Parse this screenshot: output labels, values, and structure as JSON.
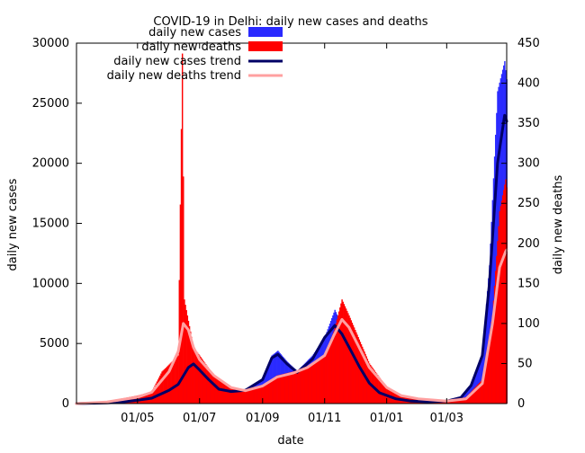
{
  "chart_data": {
    "type": "bar",
    "title": "COVID-19 in Delhi: daily new cases and deaths",
    "xlabel": "date",
    "ylabel": "daily new cases",
    "y2label": "daily new deaths",
    "x_ticks": [
      "01/05",
      "01/07",
      "01/09",
      "01/11",
      "01/01",
      "01/03"
    ],
    "x_tick_dates": [
      "2020-05-01",
      "2020-07-01",
      "2020-09-01",
      "2020-11-01",
      "2021-01-01",
      "2021-03-01"
    ],
    "x_range": [
      "2020-03-02",
      "2021-04-29"
    ],
    "ylim": [
      0,
      30000
    ],
    "y_ticks": [
      0,
      5000,
      10000,
      15000,
      20000,
      25000,
      30000
    ],
    "y2lim": [
      0,
      450
    ],
    "y2_ticks": [
      0,
      50,
      100,
      150,
      200,
      250,
      300,
      350,
      400,
      450
    ],
    "legend_placement": "top-left",
    "grid": false,
    "series": [
      {
        "name": "daily new cases",
        "kind": "bar",
        "axis": "left",
        "color": "#2a2aff",
        "points": [
          [
            "2020-03-02",
            0
          ],
          [
            "2020-04-01",
            80
          ],
          [
            "2020-04-15",
            150
          ],
          [
            "2020-05-01",
            300
          ],
          [
            "2020-05-15",
            500
          ],
          [
            "2020-06-01",
            1200
          ],
          [
            "2020-06-10",
            1800
          ],
          [
            "2020-06-20",
            3200
          ],
          [
            "2020-06-25",
            3500
          ],
          [
            "2020-07-01",
            2800
          ],
          [
            "2020-07-10",
            2000
          ],
          [
            "2020-07-20",
            1200
          ],
          [
            "2020-08-01",
            1000
          ],
          [
            "2020-08-15",
            1100
          ],
          [
            "2020-09-01",
            2000
          ],
          [
            "2020-09-10",
            4000
          ],
          [
            "2020-09-16",
            4400
          ],
          [
            "2020-09-25",
            3500
          ],
          [
            "2020-10-05",
            2700
          ],
          [
            "2020-10-20",
            4000
          ],
          [
            "2020-11-01",
            5500
          ],
          [
            "2020-11-11",
            7800
          ],
          [
            "2020-11-18",
            6500
          ],
          [
            "2020-11-25",
            5500
          ],
          [
            "2020-12-05",
            3200
          ],
          [
            "2020-12-15",
            1800
          ],
          [
            "2020-12-25",
            900
          ],
          [
            "2021-01-10",
            400
          ],
          [
            "2021-01-25",
            200
          ],
          [
            "2021-02-10",
            150
          ],
          [
            "2021-03-01",
            200
          ],
          [
            "2021-03-15",
            500
          ],
          [
            "2021-03-25",
            1600
          ],
          [
            "2021-04-05",
            4000
          ],
          [
            "2021-04-12",
            11500
          ],
          [
            "2021-04-20",
            26000
          ],
          [
            "2021-04-27",
            28500
          ],
          [
            "2021-04-29",
            27000
          ]
        ]
      },
      {
        "name": "daily new deaths",
        "kind": "bar",
        "axis": "right",
        "color": "#ff0000",
        "points": [
          [
            "2020-03-02",
            0
          ],
          [
            "2020-04-01",
            3
          ],
          [
            "2020-05-01",
            10
          ],
          [
            "2020-05-15",
            15
          ],
          [
            "2020-05-25",
            40
          ],
          [
            "2020-06-10",
            60
          ],
          [
            "2020-06-14",
            437
          ],
          [
            "2020-06-16",
            130
          ],
          [
            "2020-06-25",
            70
          ],
          [
            "2020-07-01",
            60
          ],
          [
            "2020-07-15",
            35
          ],
          [
            "2020-08-01",
            20
          ],
          [
            "2020-08-15",
            15
          ],
          [
            "2020-09-01",
            22
          ],
          [
            "2020-09-15",
            35
          ],
          [
            "2020-10-01",
            40
          ],
          [
            "2020-10-15",
            45
          ],
          [
            "2020-11-01",
            60
          ],
          [
            "2020-11-10",
            90
          ],
          [
            "2020-11-18",
            130
          ],
          [
            "2020-11-25",
            110
          ],
          [
            "2020-12-05",
            80
          ],
          [
            "2020-12-15",
            50
          ],
          [
            "2021-01-01",
            20
          ],
          [
            "2021-01-15",
            10
          ],
          [
            "2021-02-01",
            5
          ],
          [
            "2021-03-01",
            3
          ],
          [
            "2021-03-20",
            8
          ],
          [
            "2021-04-05",
            30
          ],
          [
            "2021-04-15",
            110
          ],
          [
            "2021-04-22",
            240
          ],
          [
            "2021-04-28",
            280
          ],
          [
            "2021-04-29",
            270
          ]
        ]
      },
      {
        "name": "daily new cases trend",
        "kind": "line",
        "axis": "left",
        "color": "#000066",
        "points": [
          [
            "2020-03-02",
            0
          ],
          [
            "2020-04-01",
            60
          ],
          [
            "2020-04-15",
            120
          ],
          [
            "2020-05-01",
            280
          ],
          [
            "2020-05-15",
            450
          ],
          [
            "2020-06-01",
            1100
          ],
          [
            "2020-06-10",
            1600
          ],
          [
            "2020-06-20",
            3000
          ],
          [
            "2020-06-25",
            3300
          ],
          [
            "2020-07-01",
            2800
          ],
          [
            "2020-07-10",
            2000
          ],
          [
            "2020-07-20",
            1200
          ],
          [
            "2020-08-01",
            1000
          ],
          [
            "2020-08-15",
            1100
          ],
          [
            "2020-09-01",
            2000
          ],
          [
            "2020-09-10",
            3800
          ],
          [
            "2020-09-16",
            4100
          ],
          [
            "2020-09-25",
            3300
          ],
          [
            "2020-10-05",
            2600
          ],
          [
            "2020-10-20",
            3700
          ],
          [
            "2020-11-01",
            5500
          ],
          [
            "2020-11-11",
            6500
          ],
          [
            "2020-11-18",
            5800
          ],
          [
            "2020-11-25",
            4700
          ],
          [
            "2020-12-05",
            3100
          ],
          [
            "2020-12-15",
            1700
          ],
          [
            "2020-12-25",
            900
          ],
          [
            "2021-01-10",
            400
          ],
          [
            "2021-01-25",
            200
          ],
          [
            "2021-02-10",
            150
          ],
          [
            "2021-03-01",
            200
          ],
          [
            "2021-03-15",
            500
          ],
          [
            "2021-03-25",
            1500
          ],
          [
            "2021-04-05",
            4000
          ],
          [
            "2021-04-12",
            10000
          ],
          [
            "2021-04-20",
            20000
          ],
          [
            "2021-04-27",
            24000
          ],
          [
            "2021-04-29",
            23500
          ]
        ]
      },
      {
        "name": "daily new deaths trend",
        "kind": "line",
        "axis": "right",
        "color": "#ffa0a0",
        "points": [
          [
            "2020-03-02",
            0
          ],
          [
            "2020-04-01",
            2
          ],
          [
            "2020-05-01",
            8
          ],
          [
            "2020-05-15",
            14
          ],
          [
            "2020-06-01",
            40
          ],
          [
            "2020-06-10",
            65
          ],
          [
            "2020-06-15",
            100
          ],
          [
            "2020-06-20",
            92
          ],
          [
            "2020-06-25",
            70
          ],
          [
            "2020-07-01",
            55
          ],
          [
            "2020-07-15",
            35
          ],
          [
            "2020-08-01",
            20
          ],
          [
            "2020-08-15",
            16
          ],
          [
            "2020-09-01",
            22
          ],
          [
            "2020-09-15",
            33
          ],
          [
            "2020-10-01",
            38
          ],
          [
            "2020-10-15",
            45
          ],
          [
            "2020-11-01",
            60
          ],
          [
            "2020-11-10",
            85
          ],
          [
            "2020-11-18",
            105
          ],
          [
            "2020-11-25",
            95
          ],
          [
            "2020-12-05",
            70
          ],
          [
            "2020-12-15",
            45
          ],
          [
            "2021-01-01",
            20
          ],
          [
            "2021-01-15",
            10
          ],
          [
            "2021-02-01",
            6
          ],
          [
            "2021-03-01",
            3
          ],
          [
            "2021-03-20",
            6
          ],
          [
            "2021-04-05",
            25
          ],
          [
            "2021-04-15",
            100
          ],
          [
            "2021-04-22",
            170
          ],
          [
            "2021-04-28",
            190
          ],
          [
            "2021-04-29",
            192
          ]
        ]
      }
    ]
  }
}
